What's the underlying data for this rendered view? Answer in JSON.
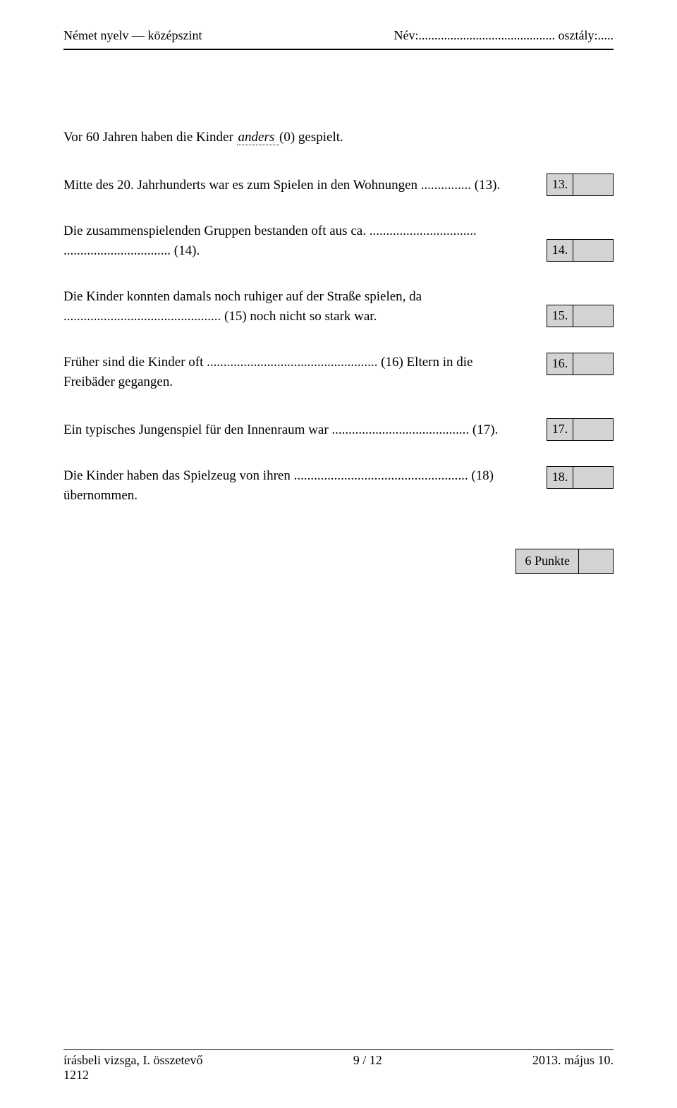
{
  "header": {
    "left": "Német nyelv — középszint",
    "right_name_label": "Név:",
    "right_name_dots": "...........................................",
    "right_class_label": "osztály:",
    "right_class_dots": "....."
  },
  "intro_prefix": "Vor 60 Jahren haben die Kinder ",
  "intro_underlined": "   anders   ",
  "intro_suffix": "(0) gespielt.",
  "q13": {
    "text": "Mitte des 20. Jahrhunderts war es zum Spielen in den Wohnungen ............... (13).",
    "num": "13."
  },
  "q14": {
    "line1": "Die zusammenspielenden Gruppen bestanden oft aus ca. ................................",
    "line2": "................................ (14).",
    "num": "14."
  },
  "q15": {
    "line1": "Die Kinder konnten damals noch ruhiger auf der Straße spielen, da",
    "line2": "............................................... (15) noch nicht so stark war.",
    "num": "15."
  },
  "q16": {
    "line1": "Früher sind die Kinder oft ................................................... (16) Eltern in die",
    "line2": "Freibäder gegangen.",
    "num": "16."
  },
  "q17": {
    "text": "Ein typisches Jungenspiel für den Innenraum war ......................................... (17).",
    "num": "17."
  },
  "q18": {
    "line1": "Die Kinder haben das Spielzeug von ihren .................................................... (18)",
    "line2": "übernommen.",
    "num": "18."
  },
  "points_label": "6 Punkte",
  "footer": {
    "left_line1": "írásbeli vizsga, I. összetevő",
    "left_line2": "1212",
    "center": "9 / 12",
    "right": "2013. május 10."
  }
}
